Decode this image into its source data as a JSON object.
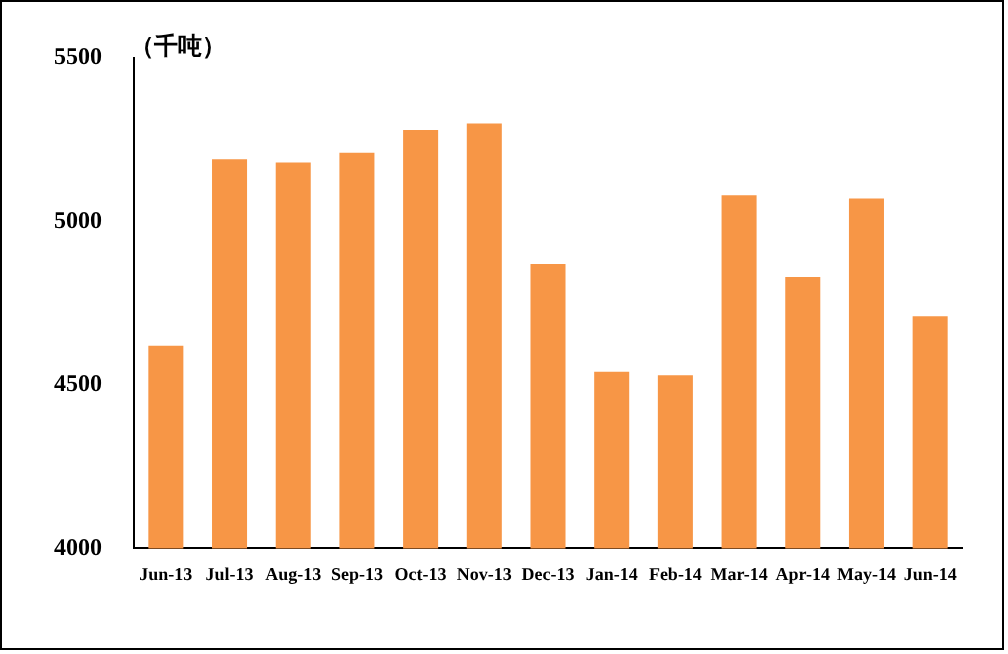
{
  "chart_data": {
    "type": "bar",
    "ylabel": "（千吨）",
    "categories": [
      "Jun-13",
      "Jul-13",
      "Aug-13",
      "Sep-13",
      "Oct-13",
      "Nov-13",
      "Dec-13",
      "Jan-14",
      "Feb-14",
      "Mar-14",
      "Apr-14",
      "May-14",
      "Jun-14"
    ],
    "values": [
      4620,
      5190,
      5180,
      5210,
      5280,
      5300,
      4870,
      4540,
      4530,
      5080,
      4830,
      5070,
      4710
    ],
    "color": "#f79646",
    "ylim": [
      4000,
      5500
    ],
    "yticks": [
      4000,
      4500,
      5000,
      5500
    ],
    "grid": false,
    "legend": false
  }
}
